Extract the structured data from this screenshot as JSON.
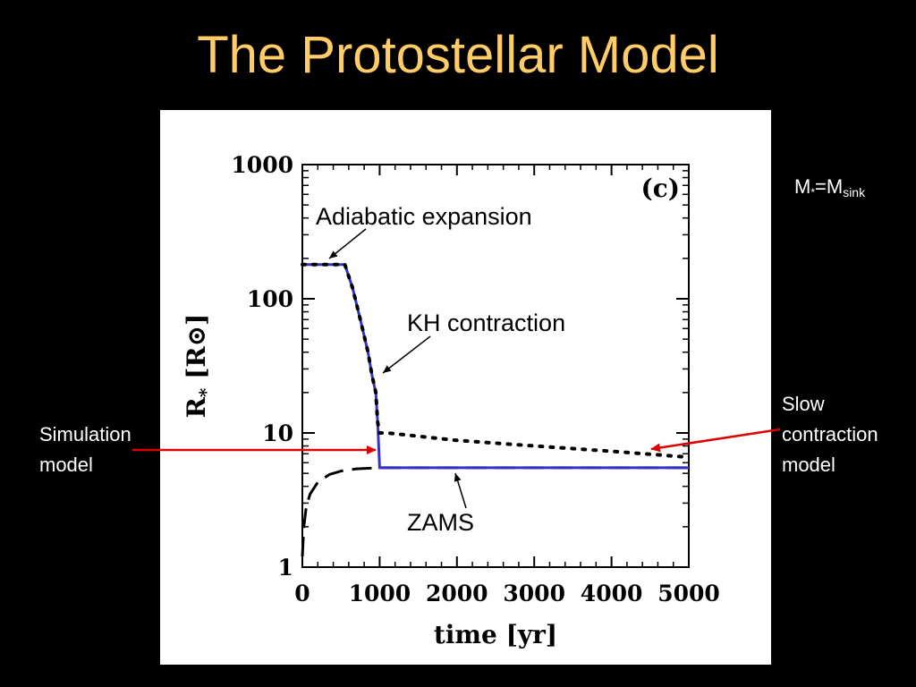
{
  "slide": {
    "title": "The Protostellar Model"
  },
  "labels": {
    "mass_relation": {
      "M": "M",
      "star": "*",
      "eq": "=M",
      "sink": "sink"
    },
    "simulation_model": [
      "Simulation",
      "model"
    ],
    "slow_contraction_model": [
      "Slow",
      "contraction",
      "model"
    ]
  },
  "colors": {
    "background": "#000000",
    "title": "#ffcc66",
    "simulation_line": "#3333cc",
    "arrow": "#dd0000",
    "plot_background": "#ffffff"
  },
  "chart_data": {
    "type": "line",
    "panel_label": "(c)",
    "xlabel": "time [yr]",
    "ylabel": "R* [R⊙]",
    "ylabel_main": "R",
    "ylabel_sub": "*",
    "ylabel_unit": "[R⊙]",
    "xlim": [
      0,
      5000
    ],
    "ylim": [
      1,
      1000
    ],
    "yscale": "log",
    "xticks": [
      0,
      1000,
      2000,
      3000,
      4000,
      5000
    ],
    "xtick_labels": [
      "0",
      "1000",
      "2000",
      "3000",
      "4000",
      "5000"
    ],
    "yticks": [
      1,
      10,
      100,
      1000
    ],
    "ytick_labels": [
      "1",
      "10",
      "100",
      "1000"
    ],
    "series": [
      {
        "style": "solid-blue",
        "x": [
          0,
          550,
          650,
          750,
          850,
          900,
          950,
          975,
          1000,
          5000
        ],
        "y": [
          180,
          180,
          120,
          70,
          40,
          27,
          20,
          12,
          5.5,
          5.5
        ]
      },
      {
        "style": "dotted-black",
        "x": [
          0,
          550,
          650,
          750,
          850,
          900,
          950,
          975,
          1000,
          1100,
          2000,
          3000,
          4000,
          5000
        ],
        "y": [
          180,
          180,
          120,
          70,
          40,
          27,
          20,
          12,
          10,
          10,
          8.8,
          8.0,
          7.3,
          6.6
        ]
      },
      {
        "style": "dashed-black",
        "x": [
          0,
          20,
          50,
          100,
          200,
          350,
          500,
          700,
          1000,
          5000
        ],
        "y": [
          1.2,
          2.0,
          2.8,
          3.5,
          4.3,
          4.9,
          5.2,
          5.4,
          5.5,
          5.5
        ]
      }
    ],
    "annotations": [
      {
        "text": "Adiabatic expansion",
        "points_to": [
          350,
          180
        ]
      },
      {
        "text": "KH contraction",
        "points_to": [
          1000,
          25
        ]
      },
      {
        "text": "ZAMS",
        "points_to": [
          2000,
          5.5
        ]
      }
    ],
    "grid": false
  }
}
